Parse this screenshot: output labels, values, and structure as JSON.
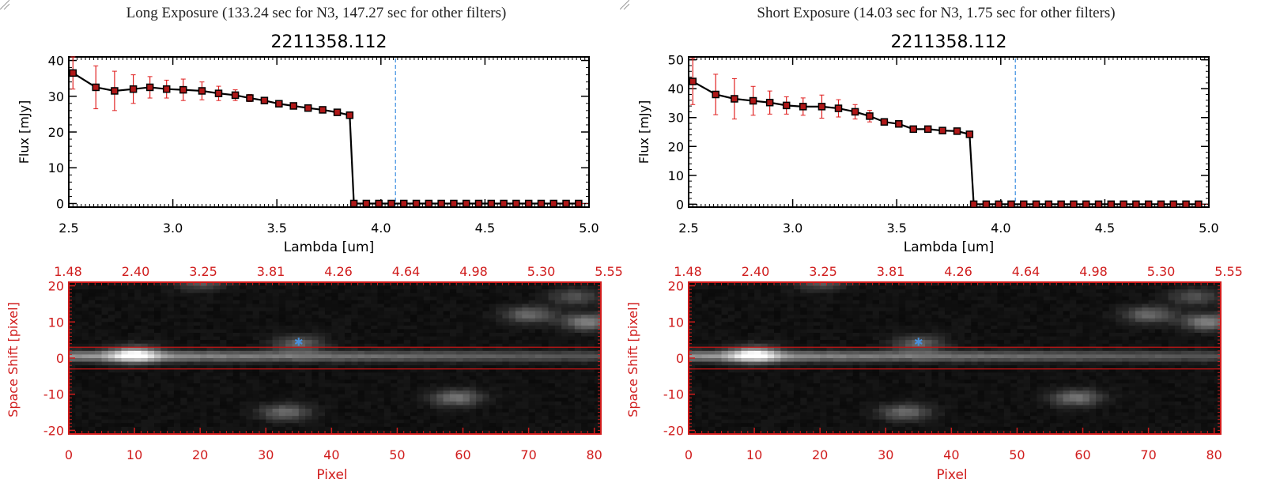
{
  "panels": [
    {
      "header": "Long Exposure (133.24 sec for N3, 147.27 sec for other filters)",
      "spectrum": {
        "type": "line",
        "title": "2211358.112",
        "xlabel": "Lambda [um]",
        "ylabel": "Flux [mJy]",
        "xlim": [
          2.5,
          5.0
        ],
        "ylim": [
          -1,
          41
        ],
        "xticks": [
          "2.5",
          "3.0",
          "3.5",
          "4.0",
          "4.5",
          "5.0"
        ],
        "yticks": [
          "0",
          "10",
          "20",
          "30",
          "40"
        ],
        "ytick_values": [
          0,
          10,
          20,
          30,
          40
        ],
        "dashed_line_x": 4.07,
        "series": [
          {
            "x": [
              2.52,
              2.63,
              2.72,
              2.81,
              2.89,
              2.97,
              3.05,
              3.14,
              3.22,
              3.3,
              3.37,
              3.44,
              3.51,
              3.58,
              3.65,
              3.72,
              3.79,
              3.85,
              3.87,
              3.93,
              3.99,
              4.05,
              4.11,
              4.17,
              4.23,
              4.29,
              4.35,
              4.41,
              4.47,
              4.53,
              4.59,
              4.65,
              4.71,
              4.77,
              4.83,
              4.89,
              4.95
            ],
            "y": [
              36.5,
              32.5,
              31.5,
              32.0,
              32.5,
              32.0,
              31.8,
              31.5,
              30.8,
              30.3,
              29.5,
              28.8,
              27.9,
              27.3,
              26.7,
              26.2,
              25.5,
              24.7,
              0,
              0,
              0,
              0,
              0,
              0,
              0,
              0,
              0,
              0,
              0,
              0,
              0,
              0,
              0,
              0,
              0,
              0,
              0
            ],
            "err": [
              4.5,
              6.0,
              5.5,
              4.0,
              3.0,
              2.5,
              3.0,
              2.5,
              2.0,
              1.5,
              1.0,
              0.5,
              0.3,
              0.3,
              0.3,
              0.3,
              0.3,
              0.3,
              0,
              0,
              0,
              0,
              0,
              0,
              0,
              0,
              0,
              0,
              0,
              0,
              0,
              0,
              0,
              0,
              0,
              0,
              0
            ]
          }
        ]
      },
      "image2d": {
        "type": "heatmap",
        "xlabel": "Pixel",
        "ylabel": "Space Shift [pixel]",
        "xlim": [
          0,
          81
        ],
        "ylim": [
          -21,
          21
        ],
        "xticks": [
          "0",
          "10",
          "20",
          "30",
          "40",
          "50",
          "60",
          "70",
          "80"
        ],
        "xtick_values": [
          0,
          10,
          20,
          30,
          40,
          50,
          60,
          70,
          80
        ],
        "yticks": [
          "20",
          "10",
          "0",
          "-10",
          "-20"
        ],
        "ytick_values": [
          20,
          10,
          0,
          -10,
          -20
        ],
        "top_ticks": [
          "1.48",
          "2.40",
          "3.25",
          "3.81",
          "4.26",
          "4.64",
          "4.98",
          "5.30",
          "5.55"
        ],
        "aperture": [
          3,
          -3
        ],
        "star_marker": [
          35,
          4.5
        ],
        "blobs": [
          {
            "x": 10,
            "y": 1,
            "brightness": 0.98
          },
          {
            "x": 35,
            "y": 4,
            "brightness": 0.5
          },
          {
            "x": 33,
            "y": -15,
            "brightness": 0.55
          },
          {
            "x": 59,
            "y": -11,
            "brightness": 0.6
          },
          {
            "x": 70,
            "y": 12,
            "brightness": 0.55
          },
          {
            "x": 79,
            "y": 10,
            "brightness": 0.7
          },
          {
            "x": 20,
            "y": 21,
            "brightness": 0.45
          },
          {
            "x": 77,
            "y": 17,
            "brightness": 0.4
          }
        ]
      }
    },
    {
      "header": "Short Exposure (14.03 sec for N3, 1.75 sec for other filters)",
      "spectrum": {
        "type": "line",
        "title": "2211358.112",
        "xlabel": "Lambda [um]",
        "ylabel": "Flux [mJy]",
        "xlim": [
          2.5,
          5.0
        ],
        "ylim": [
          -1,
          51
        ],
        "xticks": [
          "2.5",
          "3.0",
          "3.5",
          "4.0",
          "4.5",
          "5.0"
        ],
        "yticks": [
          "0",
          "10",
          "20",
          "30",
          "40",
          "50"
        ],
        "ytick_values": [
          0,
          10,
          20,
          30,
          40,
          50
        ],
        "dashed_line_x": 4.07,
        "series": [
          {
            "x": [
              2.52,
              2.63,
              2.72,
              2.81,
              2.89,
              2.97,
              3.05,
              3.14,
              3.22,
              3.3,
              3.37,
              3.44,
              3.51,
              3.58,
              3.65,
              3.72,
              3.79,
              3.85,
              3.87,
              3.93,
              3.99,
              4.05,
              4.11,
              4.17,
              4.23,
              4.29,
              4.35,
              4.41,
              4.47,
              4.53,
              4.59,
              4.65,
              4.71,
              4.77,
              4.83,
              4.89,
              4.95
            ],
            "y": [
              42.5,
              38.0,
              36.5,
              35.8,
              35.2,
              34.2,
              33.8,
              33.8,
              33.2,
              32.0,
              30.5,
              28.5,
              27.8,
              26.0,
              26.0,
              25.5,
              25.3,
              24.2,
              0,
              0,
              0,
              0,
              0,
              0,
              0,
              0,
              0,
              0,
              0,
              0,
              0,
              0,
              0,
              0,
              0,
              0,
              0
            ],
            "err": [
              8.0,
              7.0,
              7.0,
              5.0,
              4.0,
              3.0,
              3.0,
              4.0,
              3.0,
              2.5,
              2.0,
              1.0,
              0.5,
              0.3,
              0.3,
              0.3,
              0.3,
              0.3,
              0,
              0,
              0,
              0,
              0,
              0,
              0,
              0,
              0,
              0,
              0,
              0,
              0,
              0,
              0,
              0,
              0,
              0,
              0
            ]
          }
        ]
      },
      "image2d": {
        "type": "heatmap",
        "xlabel": "Pixel",
        "ylabel": "Space Shift [pixel]",
        "xlim": [
          0,
          81
        ],
        "ylim": [
          -21,
          21
        ],
        "xticks": [
          "0",
          "10",
          "20",
          "30",
          "40",
          "50",
          "60",
          "70",
          "80"
        ],
        "xtick_values": [
          0,
          10,
          20,
          30,
          40,
          50,
          60,
          70,
          80
        ],
        "yticks": [
          "20",
          "10",
          "0",
          "-10",
          "-20"
        ],
        "ytick_values": [
          20,
          10,
          0,
          -10,
          -20
        ],
        "top_ticks": [
          "1.48",
          "2.40",
          "3.25",
          "3.81",
          "4.26",
          "4.64",
          "4.98",
          "5.30",
          "5.55"
        ],
        "aperture": [
          3,
          -3
        ],
        "star_marker": [
          35,
          4.5
        ],
        "blobs": [
          {
            "x": 10,
            "y": 1,
            "brightness": 0.98
          },
          {
            "x": 35,
            "y": 4,
            "brightness": 0.5
          },
          {
            "x": 33,
            "y": -15,
            "brightness": 0.55
          },
          {
            "x": 59,
            "y": -11,
            "brightness": 0.6
          },
          {
            "x": 70,
            "y": 12,
            "brightness": 0.55
          },
          {
            "x": 79,
            "y": 10,
            "brightness": 0.7
          },
          {
            "x": 20,
            "y": 21,
            "brightness": 0.45
          },
          {
            "x": 77,
            "y": 17,
            "brightness": 0.4
          }
        ]
      }
    }
  ],
  "colors": {
    "error_bar": "#e02020",
    "marker_fill": "#b01818",
    "line": "#000000",
    "dashed_line": "#3b8fe0",
    "image_frame": "#d01c1c",
    "aperture_line": "#c81414",
    "star_marker": "#4a90d9"
  },
  "chart_data": [
    {
      "type": "line",
      "title": "2211358.112",
      "xlabel": "Lambda [um]",
      "ylabel": "Flux [mJy]",
      "xlim": [
        2.5,
        5.0
      ],
      "ylim": [
        -1,
        41
      ],
      "series": [
        {
          "x": [
            2.52,
            2.63,
            2.72,
            2.81,
            2.89,
            2.97,
            3.05,
            3.14,
            3.22,
            3.3,
            3.37,
            3.44,
            3.51,
            3.58,
            3.65,
            3.72,
            3.79,
            3.85,
            3.87
          ],
          "y": [
            36.5,
            32.5,
            31.5,
            32.0,
            32.5,
            32.0,
            31.8,
            31.5,
            30.8,
            30.3,
            29.5,
            28.8,
            27.9,
            27.3,
            26.7,
            26.2,
            25.5,
            24.7,
            0
          ]
        }
      ]
    },
    {
      "type": "heatmap",
      "xlabel": "Pixel",
      "ylabel": "Space Shift [pixel]",
      "xlim": [
        0,
        81
      ],
      "ylim": [
        -21,
        21
      ]
    },
    {
      "type": "line",
      "title": "2211358.112",
      "xlabel": "Lambda [um]",
      "ylabel": "Flux [mJy]",
      "xlim": [
        2.5,
        5.0
      ],
      "ylim": [
        -1,
        51
      ],
      "series": [
        {
          "x": [
            2.52,
            2.63,
            2.72,
            2.81,
            2.89,
            2.97,
            3.05,
            3.14,
            3.22,
            3.3,
            3.37,
            3.44,
            3.51,
            3.58,
            3.65,
            3.72,
            3.79,
            3.85,
            3.87
          ],
          "y": [
            42.5,
            38.0,
            36.5,
            35.8,
            35.2,
            34.2,
            33.8,
            33.8,
            33.2,
            32.0,
            30.5,
            28.5,
            27.8,
            26.0,
            26.0,
            25.5,
            25.3,
            24.2,
            0
          ]
        }
      ]
    },
    {
      "type": "heatmap",
      "xlabel": "Pixel",
      "ylabel": "Space Shift [pixel]",
      "xlim": [
        0,
        81
      ],
      "ylim": [
        -21,
        21
      ]
    }
  ]
}
